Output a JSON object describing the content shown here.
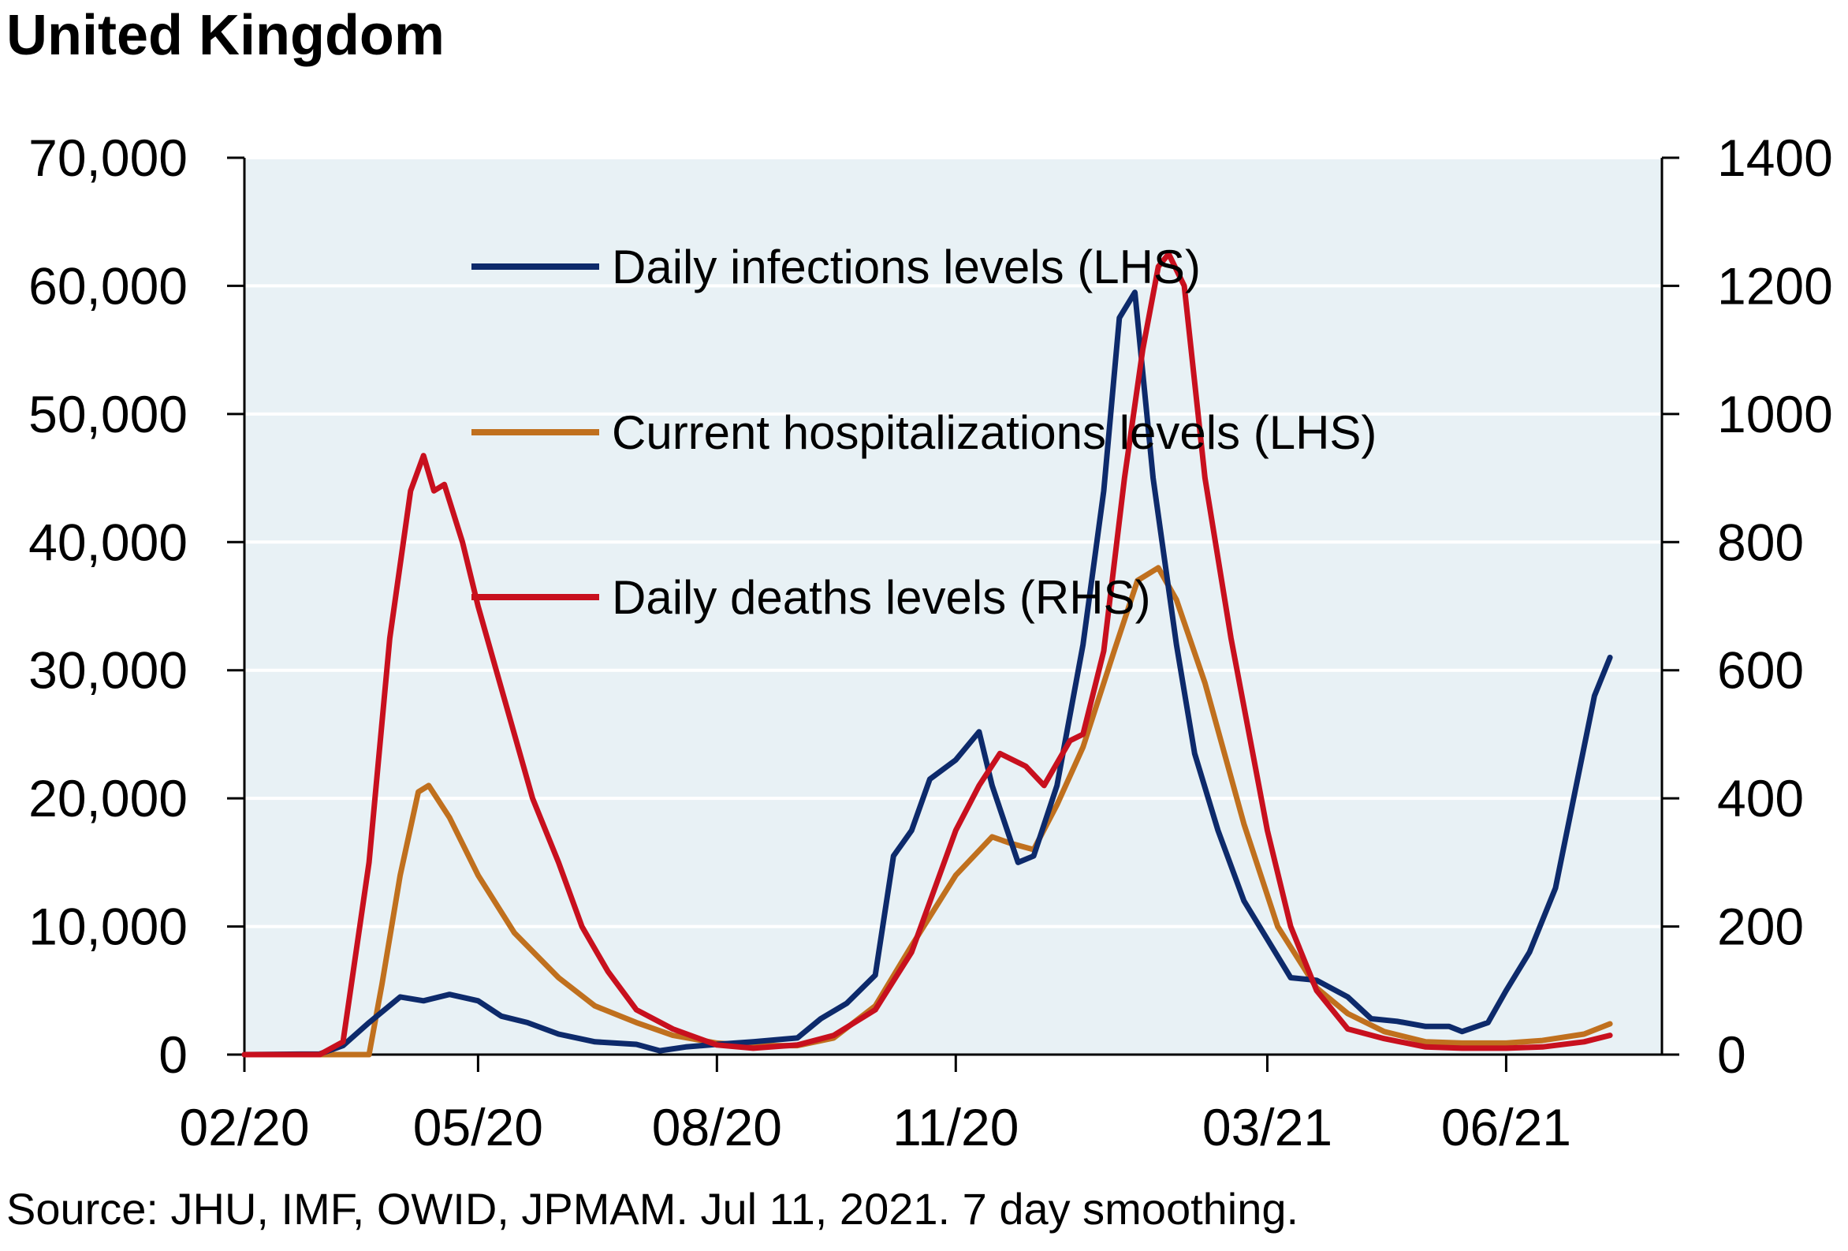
{
  "title": "United Kingdom",
  "source": "Source: JHU, IMF, OWID, JPMAM. Jul 11, 2021. 7 day smoothing.",
  "colors": {
    "plot_bg": "#e8f1f5",
    "grid": "#ffffff",
    "infections": "#0d2a6b",
    "hospitalizations": "#c0701e",
    "deaths": "#c8101e"
  },
  "chart_data": {
    "type": "line",
    "x_type": "date",
    "x_tick_labels": [
      "02/20",
      "05/20",
      "08/20",
      "11/20",
      "03/21",
      "06/21"
    ],
    "x_ticks": [
      "2020-02-01",
      "2020-05-01",
      "2020-08-01",
      "2020-11-01",
      "2021-03-01",
      "2021-06-01"
    ],
    "xlim": [
      "2020-02-01",
      "2021-07-31"
    ],
    "y_left": {
      "ylim": [
        0,
        70000
      ],
      "ticks": [
        0,
        10000,
        20000,
        30000,
        40000,
        50000,
        60000,
        70000
      ],
      "tick_labels": [
        "0",
        "10,000",
        "20,000",
        "30,000",
        "40,000",
        "50,000",
        "60,000",
        "70,000"
      ]
    },
    "y_right": {
      "ylim": [
        0,
        1400
      ],
      "ticks": [
        0,
        200,
        400,
        600,
        800,
        1000,
        1200,
        1400
      ],
      "tick_labels": [
        "0",
        "200",
        "400",
        "600",
        "800",
        "1000",
        "1200",
        "1400"
      ]
    },
    "grid": true,
    "legend_position": "top-center",
    "series": [
      {
        "name": "Daily infections levels (LHS)",
        "axis": "left",
        "color": "#0d2a6b",
        "points": [
          [
            "2020-02-01",
            0
          ],
          [
            "2020-03-01",
            50
          ],
          [
            "2020-03-10",
            700
          ],
          [
            "2020-03-20",
            2500
          ],
          [
            "2020-04-01",
            4500
          ],
          [
            "2020-04-10",
            4200
          ],
          [
            "2020-04-20",
            4700
          ],
          [
            "2020-05-01",
            4200
          ],
          [
            "2020-05-10",
            3000
          ],
          [
            "2020-05-20",
            2500
          ],
          [
            "2020-06-01",
            1600
          ],
          [
            "2020-06-15",
            1000
          ],
          [
            "2020-07-01",
            800
          ],
          [
            "2020-07-10",
            300
          ],
          [
            "2020-07-20",
            600
          ],
          [
            "2020-08-01",
            800
          ],
          [
            "2020-08-15",
            1000
          ],
          [
            "2020-09-01",
            1300
          ],
          [
            "2020-09-10",
            2800
          ],
          [
            "2020-09-20",
            4000
          ],
          [
            "2020-10-01",
            6200
          ],
          [
            "2020-10-08",
            15500
          ],
          [
            "2020-10-15",
            17500
          ],
          [
            "2020-10-22",
            21500
          ],
          [
            "2020-11-01",
            23000
          ],
          [
            "2020-11-10",
            25200
          ],
          [
            "2020-11-15",
            21000
          ],
          [
            "2020-11-25",
            15000
          ],
          [
            "2020-12-01",
            15500
          ],
          [
            "2020-12-10",
            21000
          ],
          [
            "2020-12-20",
            32000
          ],
          [
            "2020-12-28",
            44000
          ],
          [
            "2021-01-03",
            57500
          ],
          [
            "2021-01-09",
            59500
          ],
          [
            "2021-01-16",
            45000
          ],
          [
            "2021-01-25",
            32000
          ],
          [
            "2021-02-01",
            23500
          ],
          [
            "2021-02-10",
            17500
          ],
          [
            "2021-02-20",
            12000
          ],
          [
            "2021-03-01",
            9000
          ],
          [
            "2021-03-10",
            6000
          ],
          [
            "2021-03-20",
            5800
          ],
          [
            "2021-04-01",
            4500
          ],
          [
            "2021-04-10",
            2800
          ],
          [
            "2021-04-20",
            2600
          ],
          [
            "2021-05-01",
            2200
          ],
          [
            "2021-05-10",
            2200
          ],
          [
            "2021-05-15",
            1800
          ],
          [
            "2021-05-25",
            2500
          ],
          [
            "2021-06-01",
            5000
          ],
          [
            "2021-06-10",
            8000
          ],
          [
            "2021-06-20",
            13000
          ],
          [
            "2021-06-28",
            21000
          ],
          [
            "2021-07-05",
            28000
          ],
          [
            "2021-07-11",
            31000
          ]
        ]
      },
      {
        "name": "Current hospitalizations levels (LHS)",
        "axis": "left",
        "color": "#c0701e",
        "points": [
          [
            "2020-02-01",
            0
          ],
          [
            "2020-03-20",
            0
          ],
          [
            "2020-03-25",
            5500
          ],
          [
            "2020-04-01",
            14000
          ],
          [
            "2020-04-08",
            20500
          ],
          [
            "2020-04-12",
            21000
          ],
          [
            "2020-04-20",
            18500
          ],
          [
            "2020-05-01",
            14000
          ],
          [
            "2020-05-15",
            9500
          ],
          [
            "2020-06-01",
            6000
          ],
          [
            "2020-06-15",
            3800
          ],
          [
            "2020-07-01",
            2500
          ],
          [
            "2020-07-15",
            1500
          ],
          [
            "2020-08-01",
            900
          ],
          [
            "2020-08-15",
            700
          ],
          [
            "2020-09-01",
            700
          ],
          [
            "2020-09-15",
            1300
          ],
          [
            "2020-10-01",
            3800
          ],
          [
            "2020-10-15",
            8500
          ],
          [
            "2020-11-01",
            14000
          ],
          [
            "2020-11-15",
            17000
          ],
          [
            "2020-11-22",
            16500
          ],
          [
            "2020-12-01",
            16000
          ],
          [
            "2020-12-10",
            19500
          ],
          [
            "2020-12-20",
            24000
          ],
          [
            "2021-01-01",
            31500
          ],
          [
            "2021-01-10",
            37000
          ],
          [
            "2021-01-18",
            38000
          ],
          [
            "2021-01-25",
            35500
          ],
          [
            "2021-02-05",
            29000
          ],
          [
            "2021-02-20",
            18000
          ],
          [
            "2021-03-05",
            10000
          ],
          [
            "2021-03-20",
            5200
          ],
          [
            "2021-04-01",
            3200
          ],
          [
            "2021-04-15",
            1800
          ],
          [
            "2021-05-01",
            1000
          ],
          [
            "2021-05-15",
            900
          ],
          [
            "2021-06-01",
            900
          ],
          [
            "2021-06-15",
            1100
          ],
          [
            "2021-07-01",
            1600
          ],
          [
            "2021-07-11",
            2400
          ]
        ]
      },
      {
        "name": "Daily deaths levels (RHS)",
        "axis": "right",
        "color": "#c8101e",
        "points": [
          [
            "2020-02-01",
            0
          ],
          [
            "2020-03-01",
            0
          ],
          [
            "2020-03-10",
            20
          ],
          [
            "2020-03-20",
            300
          ],
          [
            "2020-03-28",
            650
          ],
          [
            "2020-04-05",
            880
          ],
          [
            "2020-04-10",
            935
          ],
          [
            "2020-04-14",
            880
          ],
          [
            "2020-04-18",
            890
          ],
          [
            "2020-04-25",
            800
          ],
          [
            "2020-05-01",
            700
          ],
          [
            "2020-05-08",
            600
          ],
          [
            "2020-05-15",
            500
          ],
          [
            "2020-05-22",
            400
          ],
          [
            "2020-06-01",
            300
          ],
          [
            "2020-06-10",
            200
          ],
          [
            "2020-06-20",
            130
          ],
          [
            "2020-07-01",
            70
          ],
          [
            "2020-07-15",
            40
          ],
          [
            "2020-08-01",
            15
          ],
          [
            "2020-08-15",
            10
          ],
          [
            "2020-09-01",
            15
          ],
          [
            "2020-09-15",
            30
          ],
          [
            "2020-10-01",
            70
          ],
          [
            "2020-10-15",
            160
          ],
          [
            "2020-11-01",
            350
          ],
          [
            "2020-11-10",
            420
          ],
          [
            "2020-11-18",
            470
          ],
          [
            "2020-11-28",
            450
          ],
          [
            "2020-12-05",
            420
          ],
          [
            "2020-12-15",
            490
          ],
          [
            "2020-12-20",
            500
          ],
          [
            "2020-12-28",
            630
          ],
          [
            "2021-01-05",
            900
          ],
          [
            "2021-01-12",
            1100
          ],
          [
            "2021-01-18",
            1230
          ],
          [
            "2021-01-22",
            1250
          ],
          [
            "2021-01-28",
            1200
          ],
          [
            "2021-02-05",
            900
          ],
          [
            "2021-02-15",
            650
          ],
          [
            "2021-03-01",
            350
          ],
          [
            "2021-03-10",
            200
          ],
          [
            "2021-03-20",
            100
          ],
          [
            "2021-04-01",
            40
          ],
          [
            "2021-04-15",
            25
          ],
          [
            "2021-05-01",
            12
          ],
          [
            "2021-05-15",
            10
          ],
          [
            "2021-06-01",
            10
          ],
          [
            "2021-06-15",
            12
          ],
          [
            "2021-07-01",
            20
          ],
          [
            "2021-07-11",
            30
          ]
        ]
      }
    ]
  }
}
